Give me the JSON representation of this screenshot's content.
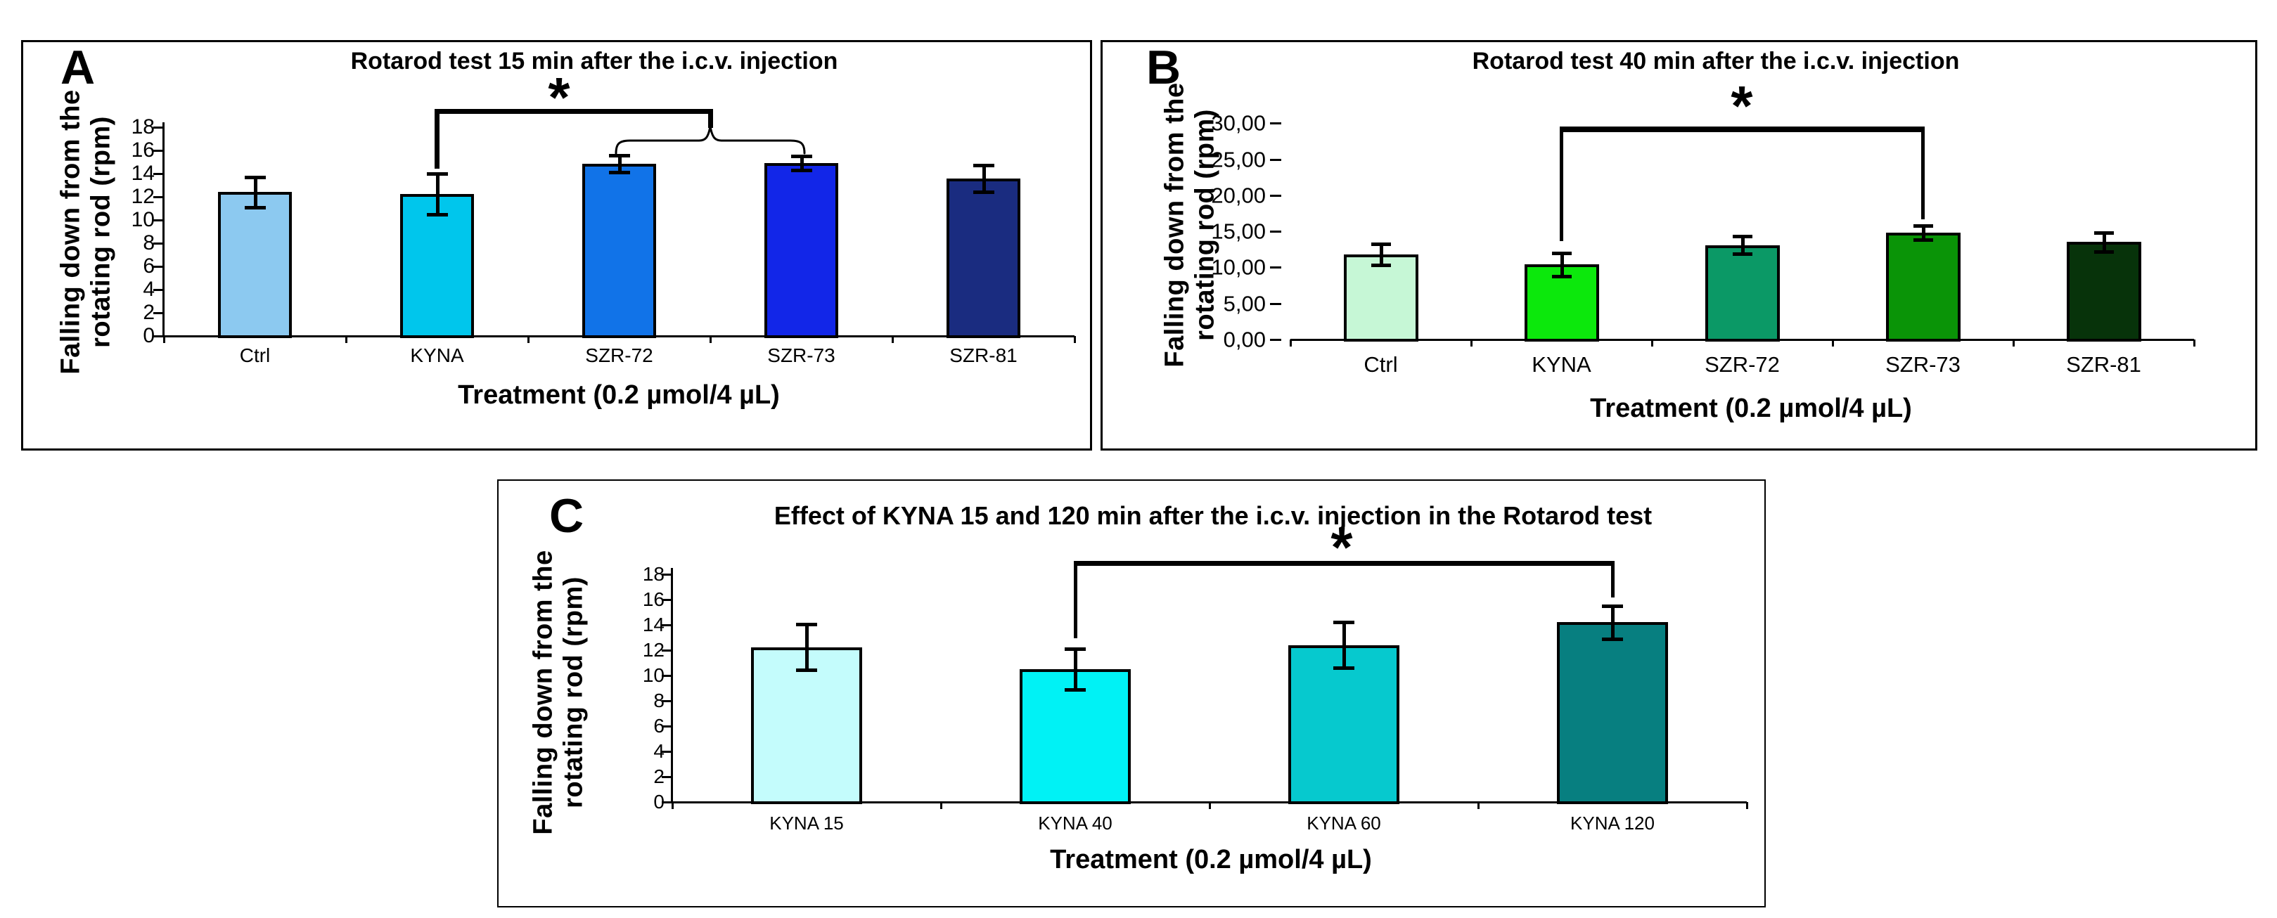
{
  "figure": {
    "panel_letters": [
      "A",
      "B",
      "C"
    ],
    "significance_symbol": "*",
    "background_color": "#ffffff",
    "line_color": "#000000"
  },
  "chart_data": [
    {
      "panel": "A",
      "type": "bar",
      "title": "Rotarod test 15 min after the i.c.v. injection",
      "ylabel": "Falling down from the rotating rod (rpm)",
      "ylabel_line1": "Falling down from the",
      "ylabel_line2": "rotating rod (rpm)",
      "xlabel": "Treatment (0.2 µmol/4 µL)",
      "categories": [
        "Ctrl",
        "KYNA",
        "SZR-72",
        "SZR-73",
        "SZR-81"
      ],
      "values": [
        12.4,
        12.25,
        14.85,
        14.9,
        13.55
      ],
      "errors": [
        1.3,
        1.75,
        0.75,
        0.6,
        1.15
      ],
      "bar_colors": [
        "#8CC9F0",
        "#00C6EC",
        "#1173E8",
        "#1226E8",
        "#1A2C80"
      ],
      "ylim": [
        0,
        18
      ],
      "ytick_step": 2,
      "ytick_labels": [
        "0",
        "2",
        "4",
        "6",
        "8",
        "10",
        "12",
        "14",
        "16",
        "18"
      ],
      "grid": false,
      "legend": null,
      "significance": {
        "symbol": "*",
        "from": "KYNA",
        "to": [
          "SZR-72",
          "SZR-73"
        ]
      }
    },
    {
      "panel": "B",
      "type": "bar",
      "title": "Rotarod test 40 min after the i.c.v. injection",
      "ylabel": "Falling down from the rotating rod (rpm)",
      "ylabel_line1": "Falling down from the",
      "ylabel_line2": "rotating rod (rpm)",
      "xlabel": "Treatment (0.2 µmol/4 µL)",
      "categories": [
        "Ctrl",
        "KYNA",
        "SZR-72",
        "SZR-73",
        "SZR-81"
      ],
      "values": [
        11.8,
        10.4,
        13.1,
        14.8,
        13.5
      ],
      "errors": [
        1.45,
        1.6,
        1.2,
        0.95,
        1.3
      ],
      "bar_colors": [
        "#C6F7D6",
        "#0CE80C",
        "#0B9966",
        "#0A9407",
        "#07330A"
      ],
      "ylim": [
        0,
        30
      ],
      "ytick_step": 5,
      "ytick_labels": [
        "0,00",
        "5,00",
        "10,00",
        "15,00",
        "20,00",
        "25,00",
        "30,00"
      ],
      "grid": false,
      "legend": null,
      "significance": {
        "symbol": "*",
        "from": "KYNA",
        "to": [
          "SZR-73"
        ]
      }
    },
    {
      "panel": "C",
      "type": "bar",
      "title": "Effect of KYNA 15 and 120 min after the i.c.v. injection in the Rotarod test",
      "ylabel": "Falling down from the rotating rod (rpm)",
      "ylabel_line1": "Falling down from the",
      "ylabel_line2": "rotating rod (rpm)",
      "xlabel": "Treatment (0.2 µmol/4 µL)",
      "categories": [
        "KYNA 15",
        "KYNA 40",
        "KYNA 60",
        "KYNA 120"
      ],
      "values": [
        12.25,
        10.5,
        12.4,
        14.2
      ],
      "errors": [
        1.8,
        1.6,
        1.8,
        1.3
      ],
      "bar_colors": [
        "#C4FCFC",
        "#00F2F5",
        "#06C9CE",
        "#077F80"
      ],
      "ylim": [
        0,
        18
      ],
      "ytick_step": 2,
      "ytick_labels": [
        "0",
        "2",
        "4",
        "6",
        "8",
        "10",
        "12",
        "14",
        "16",
        "18"
      ],
      "grid": false,
      "legend": null,
      "significance": {
        "symbol": "*",
        "from": "KYNA 40",
        "to": [
          "KYNA 120"
        ]
      }
    }
  ]
}
